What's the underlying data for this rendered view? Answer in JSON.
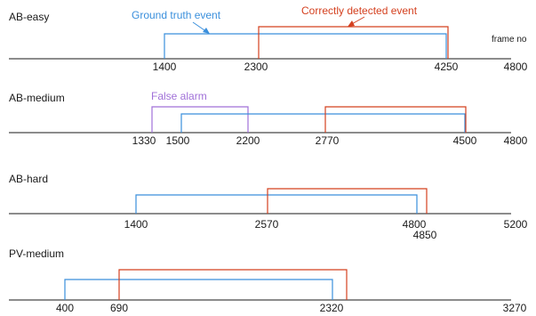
{
  "colors": {
    "ground_truth": "#3a8fdc",
    "detected": "#d4401f",
    "false_alarm": "#a070d8",
    "axis": "#1a1a1a"
  },
  "labels": {
    "ground_truth": "Ground truth event",
    "detected": "Correctly detected event",
    "false_alarm": "False alarm",
    "frame_axis": "frame no"
  },
  "rows": [
    {
      "name": "AB-easy",
      "max": 4800,
      "max_label": "4800",
      "ticks": [
        {
          "label": "1400"
        },
        {
          "label": "2300"
        },
        {
          "label": "4250"
        }
      ],
      "intervals": [
        {
          "kind": "ground_truth",
          "start": 1400,
          "end": 4250
        },
        {
          "kind": "detected",
          "start": 2300,
          "end": 4250
        }
      ]
    },
    {
      "name": "AB-medium",
      "max": 4800,
      "max_label": "4800",
      "ticks": [
        {
          "label": "1330"
        },
        {
          "label": "1500"
        },
        {
          "label": "2200"
        },
        {
          "label": "2770"
        },
        {
          "label": "4500"
        }
      ],
      "intervals": [
        {
          "kind": "false_alarm",
          "start": 1330,
          "end": 2200
        },
        {
          "kind": "ground_truth",
          "start": 1500,
          "end": 4500
        },
        {
          "kind": "detected",
          "start": 2770,
          "end": 4500
        }
      ]
    },
    {
      "name": "AB-hard",
      "max": 5200,
      "max_label": "5200",
      "ticks": [
        {
          "label": "1400"
        },
        {
          "label": "2570"
        },
        {
          "label": "4800"
        },
        {
          "label": "4850"
        }
      ],
      "intervals": [
        {
          "kind": "ground_truth",
          "start": 1400,
          "end": 4800
        },
        {
          "kind": "detected",
          "start": 2570,
          "end": 4850
        }
      ]
    },
    {
      "name": "PV-medium",
      "max": 3270,
      "max_label": "3270",
      "ticks": [
        {
          "label": "400"
        },
        {
          "label": "690"
        },
        {
          "label": "2320"
        }
      ],
      "intervals": [
        {
          "kind": "ground_truth",
          "start": 400,
          "end": 2320
        },
        {
          "kind": "detected",
          "start": 690,
          "end": 2320
        }
      ]
    }
  ]
}
